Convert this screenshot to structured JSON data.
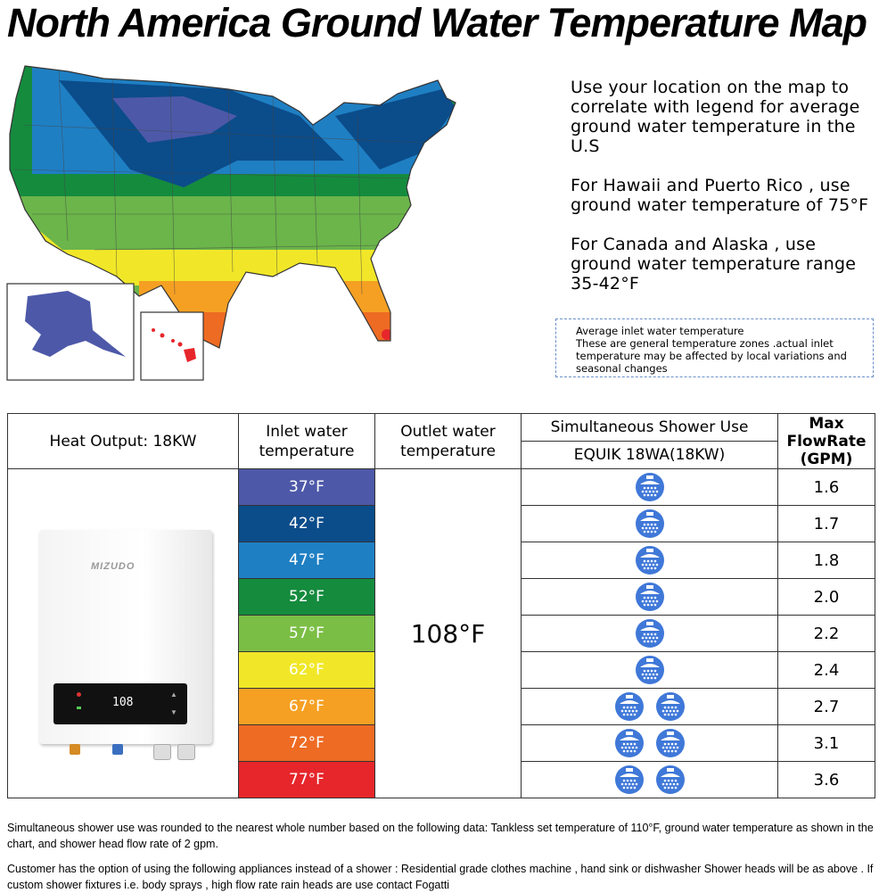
{
  "title": "North America Ground Water Temperature Map",
  "info": {
    "p1": "Use your location on the map to correlate with legend for average ground water temperature in the U.S",
    "p2": "For Hawaii and Puerto Rico , use ground water temperature of 75°F",
    "p3": "For Canada and Alaska , use ground water temperature range 35-42°F"
  },
  "note": {
    "line1": "Average inlet water temperature",
    "line2": "These are general temperature zones .actual inlet temperature may be affected by local variations and seasonal changes"
  },
  "table": {
    "heat_output": "Heat Output: 18KW",
    "inlet_header": "Inlet water temperature",
    "outlet_header": "Outlet water temperature",
    "shower_header": "Simultaneous Shower Use",
    "model": "EQUIK 18WA(18KW)",
    "flow_header": "Max FlowRate (GPM)",
    "outlet_value": "108°F",
    "brand": "MIZUDO",
    "display_value": "108",
    "rows": [
      {
        "temp": "37°F",
        "color": "#4d59a8",
        "showers": 1,
        "flow": "1.6"
      },
      {
        "temp": "42°F",
        "color": "#0b4c8a",
        "showers": 1,
        "flow": "1.7"
      },
      {
        "temp": "47°F",
        "color": "#1f7fc3",
        "showers": 1,
        "flow": "1.8"
      },
      {
        "temp": "52°F",
        "color": "#158b3e",
        "showers": 1,
        "flow": "2.0"
      },
      {
        "temp": "57°F",
        "color": "#7bbe45",
        "showers": 1,
        "flow": "2.2"
      },
      {
        "temp": "62°F",
        "color": "#f1e728",
        "showers": 1,
        "flow": "2.4"
      },
      {
        "temp": "67°F",
        "color": "#f5a023",
        "showers": 2,
        "flow": "2.7"
      },
      {
        "temp": "72°F",
        "color": "#ee6b23",
        "showers": 2,
        "flow": "3.1"
      },
      {
        "temp": "77°F",
        "color": "#e6262b",
        "showers": 2,
        "flow": "3.6"
      }
    ]
  },
  "footer": {
    "p1": "Simultaneous shower use was rounded to the nearest whole number based on the following data: Tankless set temperature of 110°F, ground water temperature as shown in the chart, and shower head flow rate of 2 gpm.",
    "p2": "Customer has the option of using the following appliances instead of a shower : Residential grade clothes machine , hand sink or dishwasher Shower heads will be as above . If custom shower fixtures i.e. body sprays , high flow rate rain heads are use contact Fogatti"
  }
}
